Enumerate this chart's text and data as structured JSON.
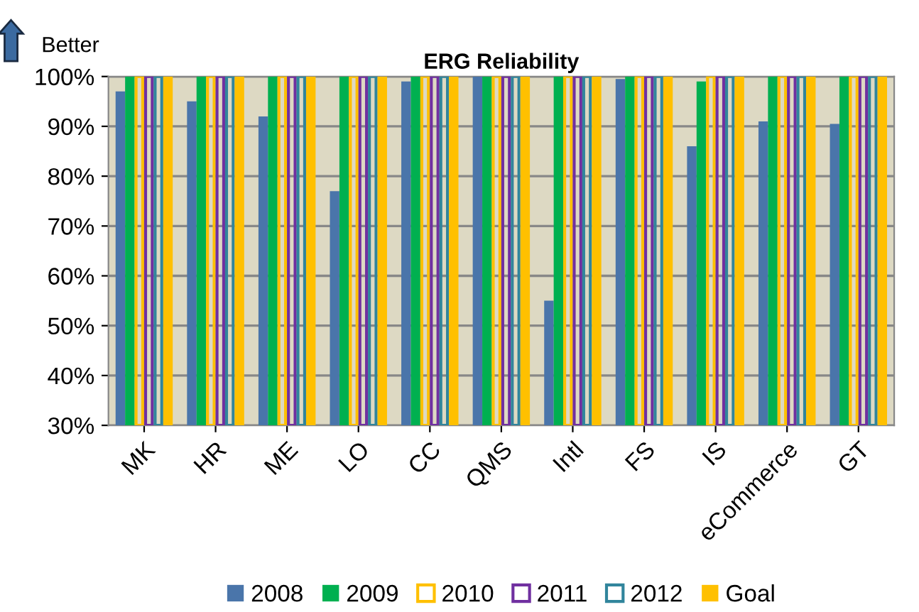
{
  "chart_data": {
    "type": "bar",
    "title": "ERG Reliability",
    "categories": [
      "MK",
      "HR",
      "ME",
      "LO",
      "CC",
      "QMS",
      "Intl",
      "FS",
      "IS",
      "eCommerce",
      "GT"
    ],
    "series": [
      {
        "name": "2008",
        "color": "#4a75aa",
        "values": [
          97,
          95,
          92,
          77,
          99,
          100,
          55,
          99.5,
          86,
          91,
          90.5
        ]
      },
      {
        "name": "2009",
        "color": "#00b050",
        "values": [
          100,
          100,
          100,
          100,
          100,
          100,
          100,
          100,
          99,
          100,
          100
        ]
      },
      {
        "name": "2010",
        "color": "#ffc000",
        "values": [
          100,
          100,
          100,
          100,
          100,
          100,
          100,
          100,
          100,
          100,
          100
        ]
      },
      {
        "name": "2011",
        "color": "#7030a0",
        "values": [
          100,
          100,
          100,
          100,
          100,
          100,
          100,
          100,
          100,
          100,
          100
        ]
      },
      {
        "name": "2012",
        "color": "#31859c",
        "values": [
          100,
          100,
          100,
          100,
          100,
          100,
          100,
          100,
          100,
          100,
          100
        ]
      },
      {
        "name": "Goal",
        "color": "#ffc000",
        "values": [
          100,
          100,
          100,
          100,
          100,
          100,
          100,
          100,
          100,
          100,
          100
        ]
      }
    ],
    "ylim": [
      30,
      100
    ],
    "yticks": [
      {
        "value": 30,
        "label": "30%"
      },
      {
        "value": 40,
        "label": "40%"
      },
      {
        "value": 50,
        "label": "50%"
      },
      {
        "value": 60,
        "label": "60%"
      },
      {
        "value": 70,
        "label": "70%"
      },
      {
        "value": 80,
        "label": "80%"
      },
      {
        "value": 90,
        "label": "90%"
      },
      {
        "value": 100,
        "label": "100%"
      }
    ],
    "grid": "y",
    "legend": "bottom",
    "annotations": [
      "Better"
    ]
  }
}
